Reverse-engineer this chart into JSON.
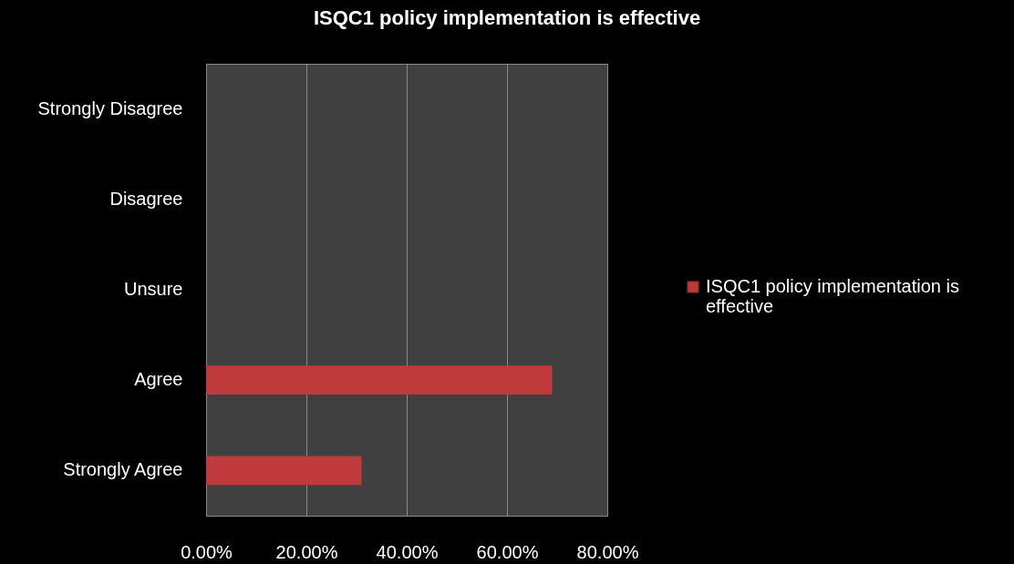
{
  "chart_data": {
    "type": "bar",
    "orientation": "horizontal",
    "title": "ISQC1 policy implementation is effective",
    "categories": [
      "Strongly Disagree",
      "Disagree",
      "Unsure",
      "Agree",
      "Strongly Agree"
    ],
    "series": [
      {
        "name": "ISQC1 policy implementation is effective",
        "color": "#c0393b",
        "values": [
          0,
          0,
          0,
          69,
          31
        ]
      }
    ],
    "xlim": [
      0,
      80
    ],
    "xticks": [
      {
        "value": 0,
        "label": "0.00%"
      },
      {
        "value": 20,
        "label": "20.00%"
      },
      {
        "value": 40,
        "label": "40.00%"
      },
      {
        "value": 60,
        "label": "60.00%"
      },
      {
        "value": 80,
        "label": "80.00%"
      }
    ],
    "grid": "x",
    "legend": "right"
  }
}
